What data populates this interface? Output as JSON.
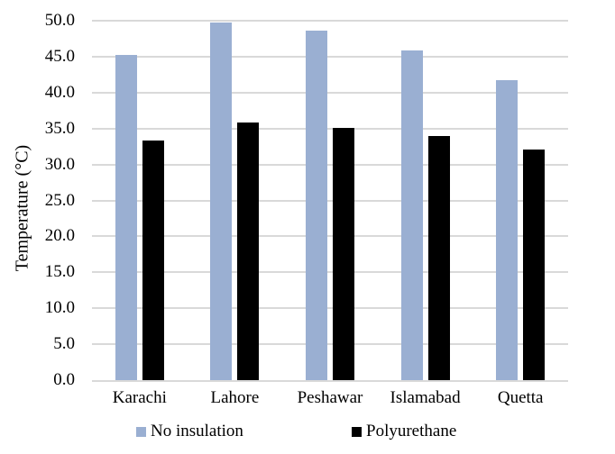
{
  "chart_data": {
    "type": "bar",
    "title": "",
    "xlabel": "",
    "ylabel": "Temperature (°C)",
    "ylim": [
      0,
      50
    ],
    "ytick_step": 5,
    "ytick_labels": [
      "0.0",
      "5.0",
      "10.0",
      "15.0",
      "20.0",
      "25.0",
      "30.0",
      "35.0",
      "40.0",
      "45.0",
      "50.0"
    ],
    "grid": true,
    "gridline_color": "#d9d9d9",
    "axis_line_color": "#d9d9d9",
    "legend_position": "bottom",
    "categories": [
      "Karachi",
      "Lahore",
      "Peshawar",
      "Islamabad",
      "Quetta"
    ],
    "series": [
      {
        "name": "No insulation",
        "color": "#9aafd2",
        "values": [
          45.2,
          49.8,
          48.6,
          45.9,
          41.7
        ]
      },
      {
        "name": "Polyurethane",
        "color": "#000000",
        "values": [
          33.3,
          35.9,
          35.1,
          34.0,
          32.1
        ]
      }
    ]
  }
}
